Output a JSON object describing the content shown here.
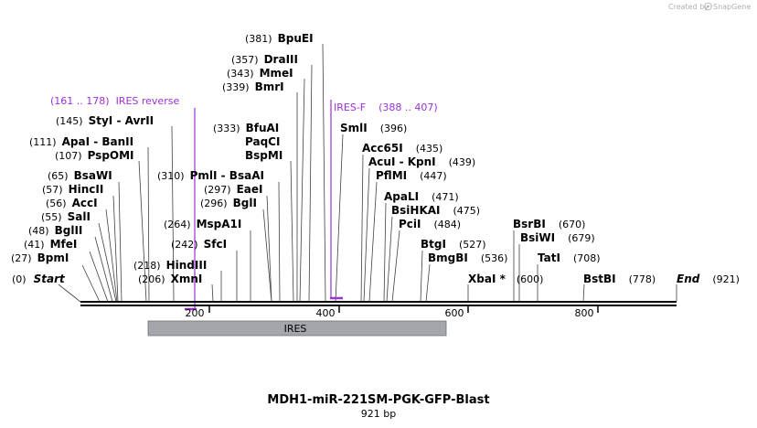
{
  "credit": {
    "text": "Created by",
    "brand": "SnapGene"
  },
  "map": {
    "title": "MDH1-miR-221SM-PGK-GFP-Blast",
    "length_label": "921 bp",
    "length": 921,
    "ticks": [
      {
        "pos": 200,
        "label": "200"
      },
      {
        "pos": 400,
        "label": "400"
      },
      {
        "pos": 600,
        "label": "600"
      },
      {
        "pos": 800,
        "label": "800"
      }
    ],
    "features": [
      {
        "name": "IRES",
        "label": "IRES",
        "start": 107,
        "end": 580,
        "color": "#a3a6ab"
      }
    ],
    "primers": [
      {
        "name": "IRES reverse",
        "range": "(161 .. 178)",
        "color": "#9b30d9"
      },
      {
        "name": "IRES-F",
        "range": "(388 .. 407)",
        "color": "#9b30d9"
      }
    ],
    "sites": [
      {
        "pos": "(0)",
        "name": "Start",
        "italic": true
      },
      {
        "pos": "(27)",
        "name": "BpmI"
      },
      {
        "pos": "(41)",
        "name": "MfeI"
      },
      {
        "pos": "(48)",
        "name": "BglII"
      },
      {
        "pos": "(55)",
        "name": "SalI"
      },
      {
        "pos": "(56)",
        "name": "AccI"
      },
      {
        "pos": "(57)",
        "name": "HincII"
      },
      {
        "pos": "(65)",
        "name": "BsaWI"
      },
      {
        "pos": "(107)",
        "name": "PspOMI"
      },
      {
        "pos": "(111)",
        "name": "ApaI - BanII"
      },
      {
        "pos": "(145)",
        "name": "StyI - AvrII"
      },
      {
        "pos": "(206)",
        "name": "XmnI"
      },
      {
        "pos": "(218)",
        "name": "HindIII"
      },
      {
        "pos": "(242)",
        "name": "SfcI"
      },
      {
        "pos": "(264)",
        "name": "MspA1I"
      },
      {
        "pos": "(296)",
        "name": "BglI"
      },
      {
        "pos": "(297)",
        "name": "EaeI"
      },
      {
        "pos": "(310)",
        "name": "PmlI - BsaAI"
      },
      {
        "pos": "(333)",
        "name": "BfuAI"
      },
      {
        "name": "PaqCI"
      },
      {
        "name": "BspMI"
      },
      {
        "pos": "(339)",
        "name": "BmrI"
      },
      {
        "pos": "(343)",
        "name": "MmeI"
      },
      {
        "pos": "(357)",
        "name": "DraIII"
      },
      {
        "pos": "(381)",
        "name": "BpuEI"
      },
      {
        "pos": "(396)",
        "name": "SmlI"
      },
      {
        "pos": "(435)",
        "name": "Acc65I"
      },
      {
        "pos": "(439)",
        "name": "AcuI - KpnI"
      },
      {
        "pos": "(447)",
        "name": "PflMI"
      },
      {
        "pos": "(471)",
        "name": "ApaLI"
      },
      {
        "pos": "(475)",
        "name": "BsiHKAI"
      },
      {
        "pos": "(484)",
        "name": "PciI"
      },
      {
        "pos": "(527)",
        "name": "BtgI"
      },
      {
        "pos": "(536)",
        "name": "BmgBI"
      },
      {
        "pos": "(600)",
        "name": "XbaI *"
      },
      {
        "pos": "(670)",
        "name": "BsrBI"
      },
      {
        "pos": "(679)",
        "name": "BsiWI"
      },
      {
        "pos": "(708)",
        "name": "TatI"
      },
      {
        "pos": "(778)",
        "name": "BstBI"
      },
      {
        "pos": "(921)",
        "name": "End",
        "italic": true
      }
    ]
  }
}
